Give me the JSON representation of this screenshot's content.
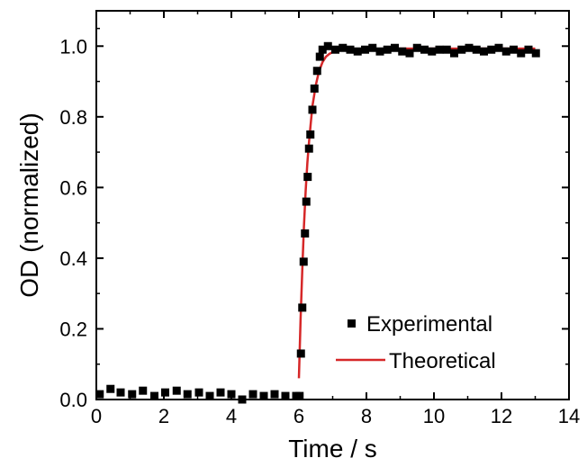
{
  "chart_data": {
    "type": "scatter",
    "xlabel": "Time / s",
    "ylabel": "OD (normalized)",
    "xlim": [
      0,
      14
    ],
    "ylim": [
      0,
      1.1
    ],
    "xticks": [
      0,
      2,
      4,
      6,
      8,
      10,
      12,
      14
    ],
    "yticks": [
      0.0,
      0.2,
      0.4,
      0.6,
      0.8,
      1.0
    ],
    "xtick_labels": [
      "0",
      "2",
      "4",
      "6",
      "8",
      "10",
      "12",
      "14"
    ],
    "ytick_labels": [
      "0.0",
      "0.2",
      "0.4",
      "0.6",
      "0.8",
      "1.0"
    ],
    "grid": false,
    "legend_position": "bottom-right",
    "series": [
      {
        "name": "Experimental",
        "kind": "scatter",
        "color": "#000000",
        "x": [
          0.1,
          0.42,
          0.72,
          1.06,
          1.38,
          1.72,
          2.04,
          2.38,
          2.7,
          3.04,
          3.36,
          3.68,
          4.0,
          4.32,
          4.64,
          4.96,
          5.28,
          5.6,
          5.92,
          6.02,
          6.06,
          6.1,
          6.14,
          6.18,
          6.22,
          6.26,
          6.3,
          6.34,
          6.4,
          6.46,
          6.54,
          6.62,
          6.7,
          6.86,
          7.08,
          7.3,
          7.52,
          7.74,
          7.96,
          8.18,
          8.4,
          8.62,
          8.84,
          9.06,
          9.28,
          9.5,
          9.72,
          9.94,
          10.16,
          10.38,
          10.6,
          10.82,
          11.04,
          11.26,
          11.48,
          11.7,
          11.92,
          12.14,
          12.36,
          12.58,
          12.8,
          13.02
        ],
        "y": [
          0.015,
          0.03,
          0.02,
          0.015,
          0.025,
          0.01,
          0.02,
          0.025,
          0.015,
          0.02,
          0.01,
          0.02,
          0.015,
          0.0,
          0.015,
          0.01,
          0.015,
          0.01,
          0.01,
          0.01,
          0.13,
          0.26,
          0.39,
          0.47,
          0.56,
          0.63,
          0.71,
          0.75,
          0.82,
          0.88,
          0.93,
          0.97,
          0.99,
          1.0,
          0.99,
          0.995,
          0.99,
          0.985,
          0.99,
          0.995,
          0.985,
          0.99,
          0.995,
          0.985,
          0.98,
          0.995,
          0.99,
          0.985,
          0.99,
          0.99,
          0.98,
          0.99,
          0.995,
          0.99,
          0.985,
          0.99,
          0.995,
          0.985,
          0.99,
          0.98,
          0.99,
          0.98
        ]
      },
      {
        "name": "Theoretical",
        "kind": "line",
        "color": "#d62728",
        "x": [
          6.0,
          6.05,
          6.1,
          6.15,
          6.2,
          6.25,
          6.3,
          6.35,
          6.4,
          6.45,
          6.5,
          6.55,
          6.6,
          6.7,
          6.8,
          6.9,
          7.0,
          7.2,
          7.5,
          8.0,
          9.0,
          10.0,
          11.0,
          12.0,
          13.0
        ],
        "y": [
          0.06,
          0.23,
          0.37,
          0.49,
          0.59,
          0.67,
          0.73,
          0.78,
          0.83,
          0.86,
          0.89,
          0.91,
          0.93,
          0.955,
          0.97,
          0.978,
          0.983,
          0.988,
          0.99,
          0.992,
          0.993,
          0.993,
          0.993,
          0.993,
          0.993
        ]
      }
    ]
  }
}
